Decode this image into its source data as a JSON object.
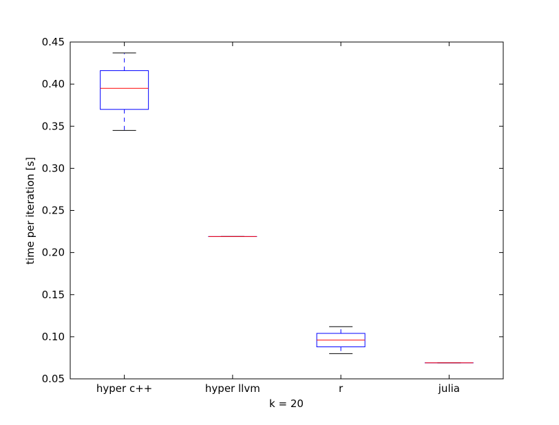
{
  "chart_data": {
    "type": "box",
    "categories": [
      "hyper c++",
      "hyper llvm",
      "r",
      "julia"
    ],
    "boxes": [
      {
        "category": "hyper c++",
        "whisker_low": 0.345,
        "q1": 0.37,
        "median": 0.395,
        "q3": 0.416,
        "whisker_high": 0.437
      },
      {
        "category": "hyper llvm",
        "whisker_low": 0.219,
        "q1": 0.219,
        "median": 0.219,
        "q3": 0.219,
        "whisker_high": 0.219
      },
      {
        "category": "r",
        "whisker_low": 0.08,
        "q1": 0.088,
        "median": 0.096,
        "q3": 0.104,
        "whisker_high": 0.112
      },
      {
        "category": "julia",
        "whisker_low": 0.069,
        "q1": 0.069,
        "median": 0.069,
        "q3": 0.069,
        "whisker_high": 0.069
      }
    ],
    "xlabel": "k = 20",
    "ylabel": "time per iteration [s]",
    "ylim": [
      0.05,
      0.45
    ],
    "yticks": [
      "0.05",
      "0.10",
      "0.15",
      "0.20",
      "0.25",
      "0.30",
      "0.35",
      "0.40",
      "0.45"
    ],
    "grid": false,
    "colors": {
      "box": "#0000ff",
      "median": "#ff0000",
      "whisker_cap": "#000000"
    }
  }
}
